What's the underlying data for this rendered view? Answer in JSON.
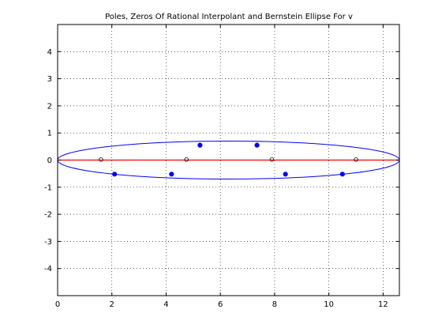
{
  "chart_data": {
    "type": "scatter",
    "title": "Poles, Zeros Of Rational Interpolant and Bernstein Ellipse For v",
    "xlabel": "",
    "ylabel": "",
    "xlim": [
      0,
      12.6
    ],
    "ylim": [
      -5,
      5
    ],
    "xticks": [
      0,
      2,
      4,
      6,
      8,
      10,
      12
    ],
    "yticks": [
      -4,
      -3,
      -2,
      -1,
      0,
      1,
      2,
      3,
      4
    ],
    "grid": true,
    "colors": {
      "poles": "#0000ff",
      "zeros": "#000000",
      "real_axis": "#ff0000",
      "ellipse": "#0000ff"
    },
    "series": [
      {
        "kind": "ellipse",
        "center": [
          6.3,
          0
        ],
        "semi_axes": [
          6.3,
          0.7
        ]
      },
      {
        "kind": "segment",
        "x": [
          0,
          12.6
        ],
        "y": [
          0,
          0
        ]
      },
      {
        "kind": "poles",
        "x": [
          2.1,
          4.2,
          5.25,
          7.35,
          8.4,
          10.5
        ],
        "y": [
          -0.52,
          -0.52,
          0.55,
          0.55,
          -0.52,
          -0.52
        ]
      },
      {
        "kind": "zeros",
        "x": [
          1.6,
          4.75,
          7.9,
          11.0
        ],
        "y": [
          0.02,
          0.02,
          0.02,
          0.02
        ]
      }
    ]
  }
}
